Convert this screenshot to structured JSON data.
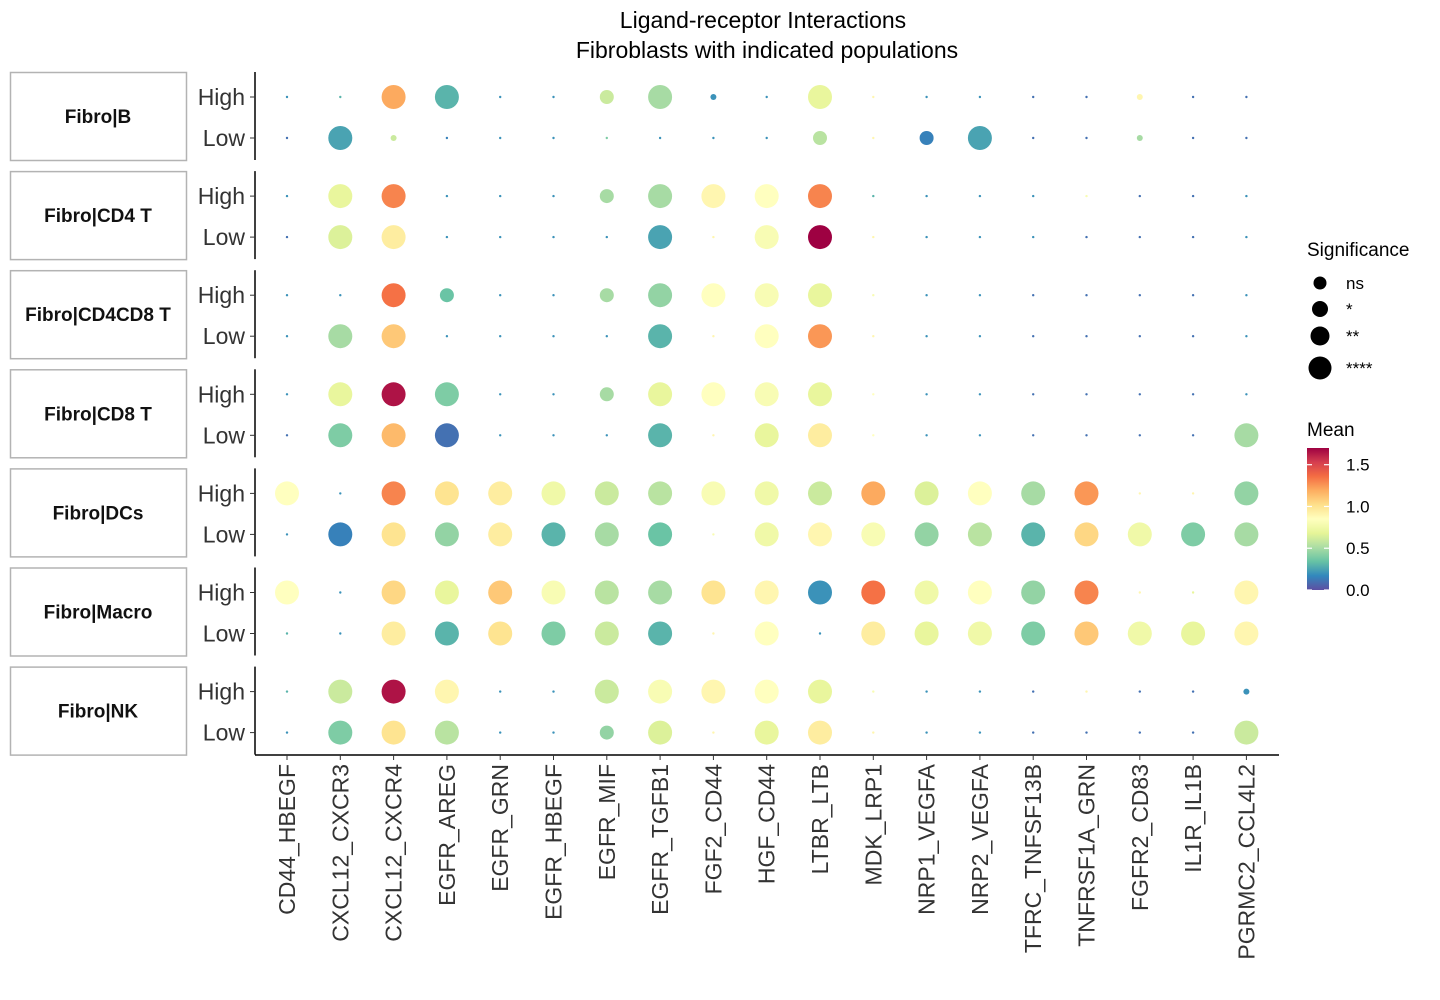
{
  "chart_data": {
    "type": "dotplot",
    "title": [
      "Ligand-receptor Interactions",
      "Fibroblasts with indicated populations"
    ],
    "categories": [
      "CD44_HBEGF",
      "CXCL12_CXCR3",
      "CXCL12_CXCR4",
      "EGFR_AREG",
      "EGFR_GRN",
      "EGFR_HBEGF",
      "EGFR_MIF",
      "EGFR_TGFB1",
      "FGF2_CD44",
      "HGF_CD44",
      "LTBR_LTB",
      "MDK_LRP1",
      "NRP1_VEGFA",
      "NRP2_VEGFA",
      "TFRC_TNFSF13B",
      "TNFRSF1A_GRN",
      "FGFR2_CD83",
      "IL1R_IL1B",
      "PGRMC2_CCL4L2"
    ],
    "row_levels": [
      "High",
      "Low"
    ],
    "facets": [
      {
        "label": "Fibro|B",
        "mean": [
          [
            0.2,
            0.3,
            1.2,
            0.3,
            0.2,
            0.2,
            0.6,
            0.5,
            0.2,
            0.2,
            0.7,
            0.9,
            0.2,
            0.2,
            0.1,
            0.1,
            0.9,
            0.1,
            0.1
          ],
          [
            0.1,
            0.25,
            0.6,
            0.15,
            0.2,
            0.2,
            0.4,
            0.2,
            0.2,
            0.2,
            0.55,
            0.9,
            0.15,
            0.25,
            0.1,
            0.1,
            0.5,
            0.1,
            0.1
          ]
        ],
        "sig": [
          [
            0,
            0,
            3,
            3,
            0,
            0,
            2,
            3,
            1,
            0,
            3,
            0,
            0,
            0,
            0,
            0,
            1,
            0,
            0
          ],
          [
            0,
            3,
            1,
            0,
            0,
            0,
            0,
            0,
            0,
            0,
            2,
            0,
            2,
            3,
            0,
            0,
            1,
            0,
            0
          ]
        ]
      },
      {
        "label": "Fibro|CD4 T",
        "mean": [
          [
            0.2,
            0.7,
            1.3,
            0.2,
            0.2,
            0.2,
            0.5,
            0.5,
            0.9,
            0.85,
            1.3,
            0.3,
            0.2,
            0.2,
            0.2,
            0.8,
            0.1,
            0.1,
            0.2
          ],
          [
            0.1,
            0.65,
            0.95,
            0.2,
            0.2,
            0.2,
            0.2,
            0.25,
            0.9,
            0.8,
            1.7,
            0.9,
            0.2,
            0.2,
            0.2,
            0.1,
            0.1,
            0.1,
            0.2
          ]
        ],
        "sig": [
          [
            0,
            3,
            3,
            0,
            0,
            0,
            2,
            3,
            3,
            3,
            3,
            0,
            0,
            0,
            0,
            0,
            0,
            0,
            0
          ],
          [
            0,
            3,
            3,
            0,
            0,
            0,
            0,
            3,
            0,
            3,
            3,
            0,
            0,
            0,
            0,
            0,
            0,
            0,
            0
          ]
        ]
      },
      {
        "label": "Fibro|CD4CD8 T",
        "mean": [
          [
            0.2,
            0.2,
            1.35,
            0.35,
            0.2,
            0.2,
            0.5,
            0.45,
            0.85,
            0.8,
            0.7,
            0.8,
            0.2,
            0.2,
            0.1,
            0.1,
            0.1,
            0.1,
            0.2
          ],
          [
            0.2,
            0.5,
            1.1,
            0.2,
            0.2,
            0.2,
            0.2,
            0.3,
            0.9,
            0.85,
            1.25,
            0.9,
            0.2,
            0.2,
            0.1,
            0.1,
            0.1,
            0.1,
            0.2
          ]
        ],
        "sig": [
          [
            0,
            0,
            3,
            2,
            0,
            0,
            2,
            3,
            3,
            3,
            3,
            0,
            0,
            0,
            0,
            0,
            0,
            0,
            0
          ],
          [
            0,
            3,
            3,
            0,
            0,
            0,
            0,
            3,
            0,
            3,
            3,
            0,
            0,
            0,
            0,
            0,
            0,
            0,
            0
          ]
        ]
      },
      {
        "label": "Fibro|CD8 T",
        "mean": [
          [
            0.2,
            0.7,
            1.65,
            0.4,
            0.2,
            0.2,
            0.5,
            0.7,
            0.85,
            0.8,
            0.7,
            0.85,
            0.2,
            0.2,
            0.1,
            0.1,
            0.1,
            0.1,
            0.2
          ],
          [
            0.1,
            0.4,
            1.15,
            0.1,
            0.2,
            0.2,
            0.2,
            0.3,
            0.9,
            0.7,
            0.95,
            0.85,
            0.2,
            0.2,
            0.1,
            0.1,
            0.1,
            0.1,
            0.5
          ]
        ],
        "sig": [
          [
            0,
            3,
            3,
            3,
            0,
            0,
            2,
            3,
            3,
            3,
            3,
            0,
            0,
            0,
            0,
            0,
            0,
            0,
            0
          ],
          [
            0,
            3,
            3,
            3,
            0,
            0,
            0,
            3,
            0,
            3,
            3,
            0,
            0,
            0,
            0,
            0,
            0,
            0,
            3
          ]
        ]
      },
      {
        "label": "Fibro|DCs",
        "mean": [
          [
            0.85,
            0.2,
            1.3,
            1.0,
            0.95,
            0.75,
            0.6,
            0.55,
            0.8,
            0.75,
            0.6,
            1.2,
            0.65,
            0.85,
            0.5,
            1.25,
            0.9,
            0.9,
            0.45
          ],
          [
            0.2,
            0.15,
            1.0,
            0.45,
            0.95,
            0.3,
            0.5,
            0.35,
            0.8,
            0.75,
            0.9,
            0.8,
            0.45,
            0.55,
            0.3,
            1.05,
            0.75,
            0.4,
            0.5
          ]
        ],
        "sig": [
          [
            3,
            0,
            3,
            3,
            3,
            3,
            3,
            3,
            3,
            3,
            3,
            3,
            3,
            3,
            3,
            3,
            0,
            0,
            3
          ],
          [
            0,
            3,
            3,
            3,
            3,
            3,
            3,
            3,
            0,
            3,
            3,
            3,
            3,
            3,
            3,
            3,
            3,
            3,
            3
          ]
        ]
      },
      {
        "label": "Fibro|Macro",
        "mean": [
          [
            0.85,
            0.2,
            1.05,
            0.7,
            1.1,
            0.8,
            0.55,
            0.5,
            1.0,
            0.9,
            0.2,
            1.35,
            0.75,
            0.85,
            0.45,
            1.3,
            0.9,
            0.7,
            0.9
          ],
          [
            0.3,
            0.2,
            0.95,
            0.3,
            1.0,
            0.4,
            0.6,
            0.3,
            0.9,
            0.85,
            0.2,
            0.95,
            0.7,
            0.75,
            0.4,
            1.1,
            0.75,
            0.7,
            0.9
          ]
        ],
        "sig": [
          [
            3,
            0,
            3,
            3,
            3,
            3,
            3,
            3,
            3,
            3,
            3,
            3,
            3,
            3,
            3,
            3,
            0,
            0,
            3
          ],
          [
            0,
            0,
            3,
            3,
            3,
            3,
            3,
            3,
            0,
            3,
            0,
            3,
            3,
            3,
            3,
            3,
            3,
            3,
            3
          ]
        ]
      },
      {
        "label": "Fibro|NK",
        "mean": [
          [
            0.3,
            0.6,
            1.65,
            0.9,
            0.2,
            0.2,
            0.6,
            0.8,
            0.9,
            0.85,
            0.7,
            0.8,
            0.2,
            0.2,
            0.1,
            0.9,
            0.1,
            0.1,
            0.2
          ],
          [
            0.2,
            0.4,
            1.0,
            0.55,
            0.2,
            0.2,
            0.45,
            0.65,
            0.9,
            0.7,
            0.95,
            0.9,
            0.2,
            0.2,
            0.1,
            0.1,
            0.1,
            0.1,
            0.6
          ]
        ],
        "sig": [
          [
            0,
            3,
            3,
            3,
            0,
            0,
            3,
            3,
            3,
            3,
            3,
            0,
            0,
            0,
            0,
            0,
            0,
            0,
            1
          ],
          [
            0,
            3,
            3,
            3,
            0,
            0,
            2,
            3,
            0,
            3,
            3,
            0,
            0,
            0,
            0,
            0,
            0,
            0,
            3
          ]
        ]
      }
    ],
    "legend": {
      "size": {
        "title": "Significance",
        "levels": [
          "ns",
          "*",
          "**",
          "****"
        ]
      },
      "color": {
        "title": "Mean",
        "range": [
          0.0,
          1.7
        ],
        "ticks": [
          "1.5",
          "1.0",
          "0.5",
          "0.0"
        ],
        "tick_values": [
          1.5,
          1.0,
          0.5,
          0.0
        ],
        "palette": [
          "#5E4FA2",
          "#3288BD",
          "#66C2A5",
          "#ABDDA4",
          "#E6F598",
          "#FFFFBF",
          "#FEE08B",
          "#FDAE61",
          "#F46D43",
          "#D53E4F",
          "#9E0142"
        ]
      }
    }
  }
}
